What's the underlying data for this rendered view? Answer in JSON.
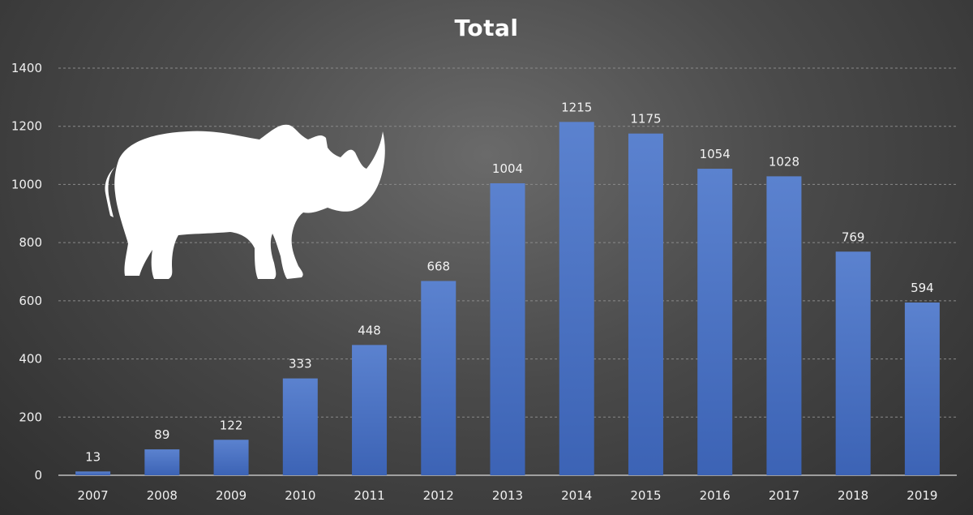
{
  "chart_data": {
    "type": "bar",
    "title": "Total",
    "xlabel": "",
    "ylabel": "",
    "categories": [
      "2007",
      "2008",
      "2009",
      "2010",
      "2011",
      "2012",
      "2013",
      "2014",
      "2015",
      "2016",
      "2017",
      "2018",
      "2019"
    ],
    "values": [
      13,
      89,
      122,
      333,
      448,
      668,
      1004,
      1215,
      1175,
      1054,
      1028,
      769,
      594
    ],
    "ylim": [
      0,
      1400
    ],
    "yticks": [
      0,
      200,
      400,
      600,
      800,
      1000,
      1200,
      1400
    ],
    "grid": true,
    "legend": "none",
    "data_labels": true,
    "colors": {
      "bar": "#4472C4",
      "gridline": "#8a8a8a",
      "text": "#f0f0f0",
      "background": "#3c3c3c"
    },
    "decoration_icon": "rhino-icon"
  }
}
